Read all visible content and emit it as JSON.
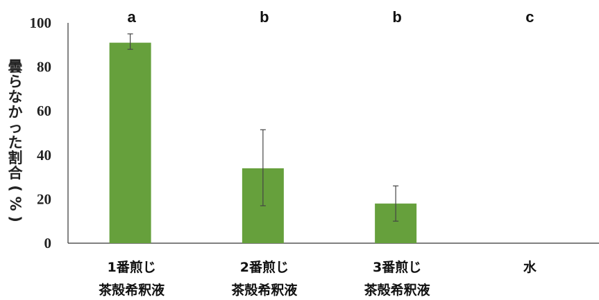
{
  "chart_data": {
    "type": "bar",
    "categories": [
      [
        "1番煎じ",
        "茶殻希釈液"
      ],
      [
        "2番煎じ",
        "茶殻希釈液"
      ],
      [
        "3番煎じ",
        "茶殻希釈液"
      ],
      [
        "水"
      ]
    ],
    "values": [
      91,
      34,
      18,
      0
    ],
    "error_low": [
      88,
      17,
      10,
      null
    ],
    "error_high": [
      95,
      51.5,
      26,
      null
    ],
    "significance_letters": [
      "a",
      "b",
      "b",
      "c"
    ],
    "ylabel": "曇らなかった割合(%)",
    "xlabel": "",
    "ylim": [
      0,
      100
    ],
    "yticks": [
      0,
      20,
      40,
      60,
      80,
      100
    ],
    "grid": false,
    "bar_color": "#66a03c"
  }
}
